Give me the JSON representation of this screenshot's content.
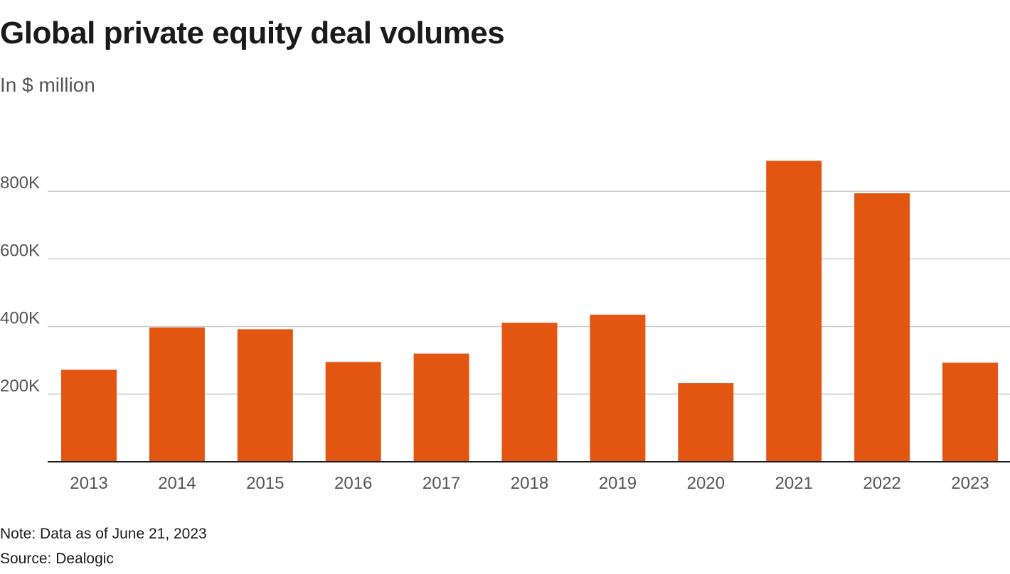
{
  "title": "Global private equity deal volumes",
  "subtitle": "In $ million",
  "note": "Note: Data as of June 21, 2023",
  "source": "Source: Dealogic",
  "colors": {
    "bar": "#e35612",
    "grid": "#c8c8c8",
    "axis": "#1a1a1a",
    "tick_text": "#555555"
  },
  "chart_data": {
    "type": "bar",
    "title": "Global private equity deal volumes",
    "subtitle": "In $ million",
    "xlabel": "",
    "ylabel": "",
    "categories": [
      "2013",
      "2014",
      "2015",
      "2016",
      "2017",
      "2018",
      "2019",
      "2020",
      "2021",
      "2022",
      "2023"
    ],
    "values": [
      272000,
      397000,
      392000,
      295000,
      320000,
      411000,
      435000,
      233000,
      890000,
      794000,
      293000
    ],
    "ylim": [
      0,
      900000
    ],
    "yticks": [
      200000,
      400000,
      600000,
      800000
    ],
    "ytick_labels": [
      "200K",
      "400K",
      "600K",
      "800K"
    ],
    "grid": true,
    "legend": "none"
  }
}
